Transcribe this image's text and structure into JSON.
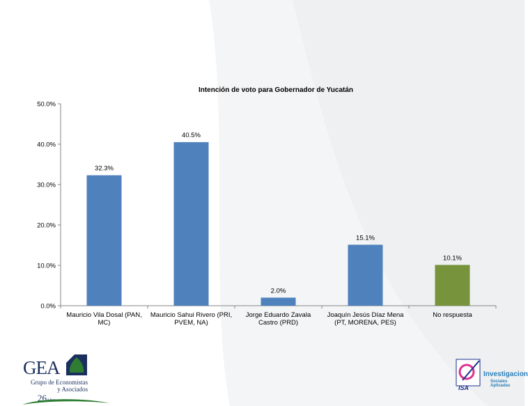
{
  "chart_data": {
    "type": "bar",
    "title": "Intención de voto para Gobernador de Yucatán",
    "categories": [
      [
        "Mauricio Vila Dosal (PAN,",
        "MC)"
      ],
      [
        "Mauricio Sahui Rivero (PRI,",
        "PVEM, NA)"
      ],
      [
        "Jorge Eduardo Zavala",
        "Castro (PRD)"
      ],
      [
        "Joaquín Jesús Díaz Mena",
        "(PT, MORENA, PES)"
      ],
      [
        "No respuesta"
      ]
    ],
    "values": [
      32.3,
      40.5,
      2.0,
      15.1,
      10.1
    ],
    "data_labels": [
      "32.3%",
      "40.5%",
      "2.0%",
      "15.1%",
      "10.1%"
    ],
    "colors": [
      "#4f81bd",
      "#4f81bd",
      "#4f81bd",
      "#4f81bd",
      "#77933c"
    ],
    "ylim": [
      0,
      50
    ],
    "yticks": [
      0,
      10,
      20,
      30,
      40,
      50
    ],
    "ytick_labels": [
      "0.0%",
      "10.0%",
      "20.0%",
      "30.0%",
      "40.0%",
      "50.0%"
    ],
    "xlabel": "",
    "ylabel": "",
    "grid": false,
    "legend": "none"
  },
  "logos": {
    "gea": {
      "name": "GEA",
      "subtitle_1": "Grupo de Economistas",
      "subtitle_2": "y Asociados",
      "years": "26",
      "years_unit": "Años"
    },
    "isa": {
      "name": "Investigacion",
      "subtitle": "Sociales Aplicadas",
      "mark": "ISA"
    }
  }
}
